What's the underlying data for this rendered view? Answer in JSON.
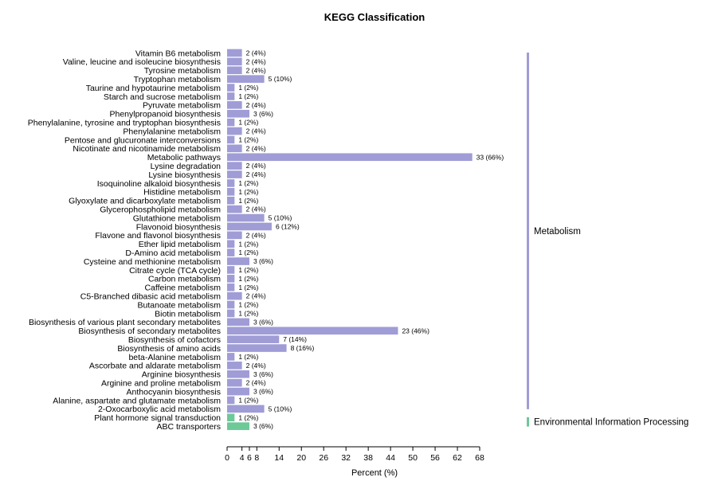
{
  "chart_data": {
    "type": "bar",
    "orientation": "horizontal",
    "title": "KEGG Classification",
    "xlabel": "Percent (%)",
    "ylabel": "",
    "xlim": [
      0,
      68
    ],
    "xticks": [
      "0",
      "4",
      "6",
      "8",
      "14",
      "20",
      "26",
      "32",
      "38",
      "44",
      "50",
      "56",
      "62",
      "68"
    ],
    "categories": [
      "Vitamin B6 metabolism",
      "Valine, leucine and isoleucine biosynthesis",
      "Tyrosine metabolism",
      "Tryptophan metabolism",
      "Taurine and hypotaurine metabolism",
      "Starch and sucrose metabolism",
      "Pyruvate metabolism",
      "Phenylpropanoid biosynthesis",
      "Phenylalanine, tyrosine and tryptophan biosynthesis",
      "Phenylalanine metabolism",
      "Pentose and glucuronate interconversions",
      "Nicotinate and nicotinamide metabolism",
      "Metabolic pathways",
      "Lysine degradation",
      "Lysine biosynthesis",
      "Isoquinoline alkaloid biosynthesis",
      "Histidine metabolism",
      "Glyoxylate and dicarboxylate metabolism",
      "Glycerophospholipid metabolism",
      "Glutathione metabolism",
      "Flavonoid biosynthesis",
      "Flavone and flavonol biosynthesis",
      "Ether lipid metabolism",
      "D-Amino acid metabolism",
      "Cysteine and methionine metabolism",
      "Citrate cycle (TCA cycle)",
      "Carbon metabolism",
      "Caffeine metabolism",
      "C5-Branched dibasic acid metabolism",
      "Butanoate metabolism",
      "Biotin metabolism",
      "Biosynthesis of various plant secondary metabolites",
      "Biosynthesis of secondary metabolites",
      "Biosynthesis of cofactors",
      "Biosynthesis of amino acids",
      "beta-Alanine metabolism",
      "Ascorbate and aldarate metabolism",
      "Arginine biosynthesis",
      "Arginine and proline metabolism",
      "Anthocyanin biosynthesis",
      "Alanine, aspartate and glutamate metabolism",
      "2-Oxocarboxylic acid metabolism",
      "Plant hormone signal transduction",
      "ABC transporters"
    ],
    "percent": [
      4,
      4,
      4,
      10,
      2,
      2,
      4,
      6,
      2,
      4,
      2,
      4,
      66,
      4,
      4,
      2,
      2,
      2,
      4,
      10,
      12,
      4,
      2,
      2,
      6,
      2,
      2,
      2,
      4,
      2,
      2,
      6,
      46,
      14,
      16,
      2,
      4,
      6,
      4,
      6,
      2,
      10,
      2,
      6
    ],
    "value_labels": [
      "2 (4%)",
      "2 (4%)",
      "2 (4%)",
      "5 (10%)",
      "1 (2%)",
      "1 (2%)",
      "2 (4%)",
      "3 (6%)",
      "1 (2%)",
      "2 (4%)",
      "1 (2%)",
      "2 (4%)",
      "33 (66%)",
      "2 (4%)",
      "2 (4%)",
      "1 (2%)",
      "1 (2%)",
      "1 (2%)",
      "2 (4%)",
      "5 (10%)",
      "6 (12%)",
      "2 (4%)",
      "1 (2%)",
      "1 (2%)",
      "3 (6%)",
      "1 (2%)",
      "1 (2%)",
      "1 (2%)",
      "2 (4%)",
      "1 (2%)",
      "1 (2%)",
      "3 (6%)",
      "23 (46%)",
      "7 (14%)",
      "8 (16%)",
      "1 (2%)",
      "2 (4%)",
      "3 (6%)",
      "2 (4%)",
      "3 (6%)",
      "1 (2%)",
      "5 (10%)",
      "1 (2%)",
      "3 (6%)"
    ],
    "groups": [
      {
        "name": "Metabolism",
        "start": 0,
        "end": 41,
        "color": "#9f9cd6"
      },
      {
        "name": "Environmental Information Processing",
        "start": 42,
        "end": 43,
        "color": "#6dc997"
      }
    ],
    "grid": false,
    "legend": "right"
  }
}
